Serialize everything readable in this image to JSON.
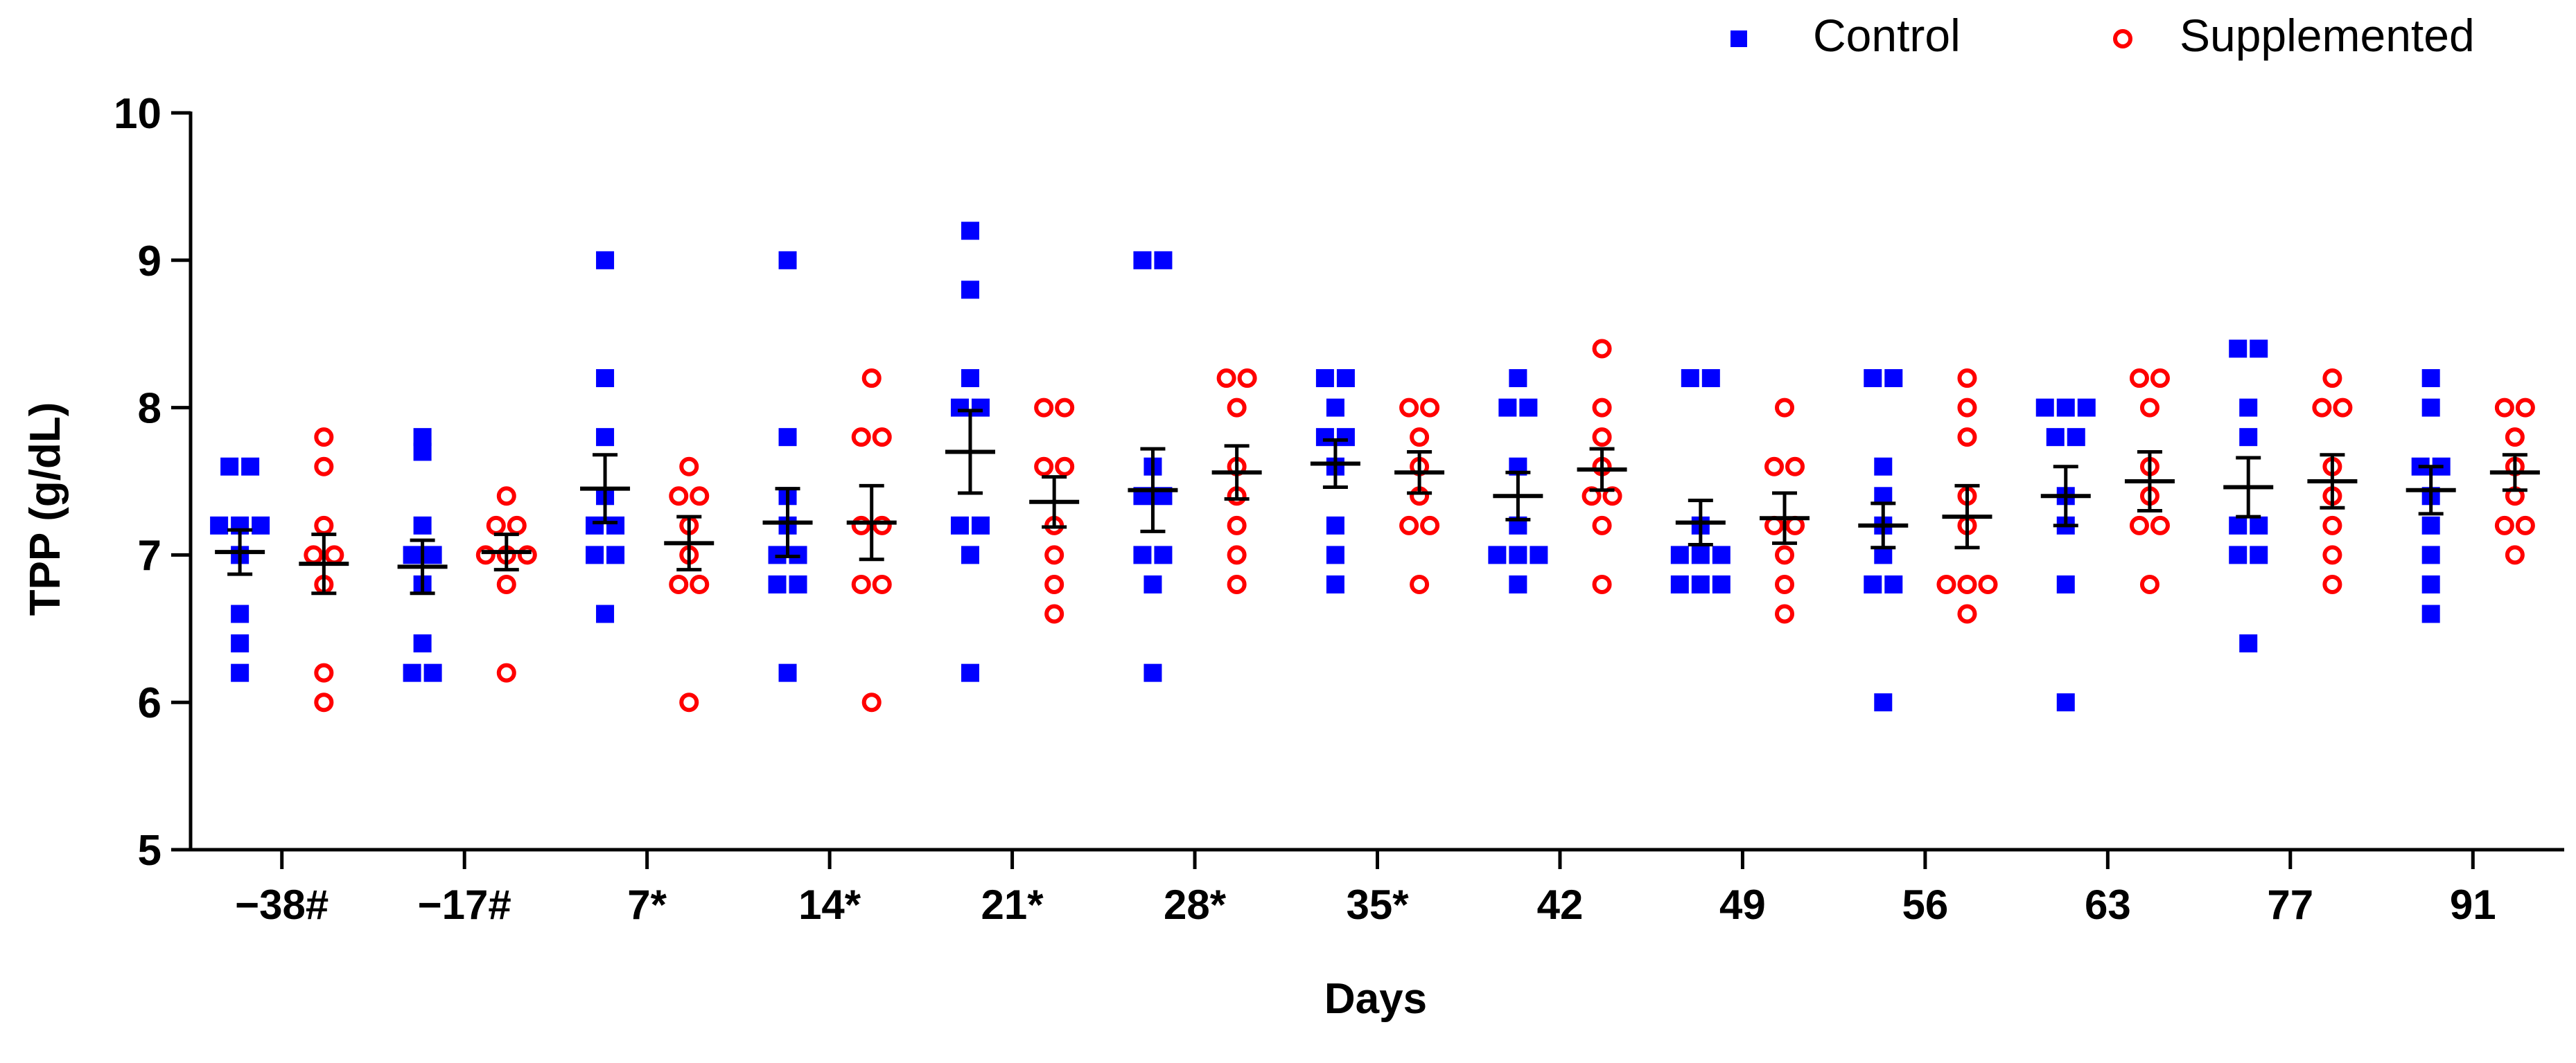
{
  "chart_data": {
    "type": "scatter",
    "title": "",
    "xlabel": "Days",
    "ylabel": "TPP (g/dL)",
    "ylim": [
      5,
      10
    ],
    "yticks": [
      "5",
      "6",
      "7",
      "8",
      "9",
      "10"
    ],
    "categories": [
      "−38#",
      "−17#",
      "7*",
      "14*",
      "21*",
      "28*",
      "35*",
      "42",
      "49",
      "56",
      "63",
      "77",
      "91"
    ],
    "legend_position": "top-right",
    "series": [
      {
        "name": "Control",
        "marker": "square",
        "color": "#0000ff",
        "points": [
          [
            7.6,
            7.6,
            7.2,
            7.2,
            7.2,
            7.0,
            6.6,
            6.4,
            6.2
          ],
          [
            7.8,
            7.7,
            7.2,
            7.0,
            7.0,
            6.8,
            6.4,
            6.2,
            6.2
          ],
          [
            9.0,
            8.2,
            7.8,
            7.4,
            7.2,
            7.2,
            7.0,
            7.0,
            6.6
          ],
          [
            9.0,
            7.8,
            7.4,
            7.2,
            7.0,
            7.0,
            6.8,
            6.8,
            6.2
          ],
          [
            9.2,
            8.8,
            8.2,
            8.0,
            8.0,
            7.2,
            7.2,
            7.0,
            6.2
          ],
          [
            9.0,
            9.0,
            7.6,
            7.4,
            7.4,
            7.0,
            7.0,
            6.8,
            6.2
          ],
          [
            8.2,
            8.2,
            8.0,
            7.8,
            7.8,
            7.6,
            7.2,
            7.0,
            6.8
          ],
          [
            8.2,
            8.0,
            8.0,
            7.6,
            7.2,
            7.0,
            7.0,
            7.0,
            6.8
          ],
          [
            8.2,
            8.2,
            7.2,
            7.0,
            7.0,
            7.0,
            6.8,
            6.8,
            6.8
          ],
          [
            8.2,
            8.2,
            7.6,
            7.4,
            7.2,
            7.0,
            6.8,
            6.8,
            6.0
          ],
          [
            8.0,
            8.0,
            8.0,
            7.8,
            7.8,
            7.4,
            7.2,
            6.8,
            6.0
          ],
          [
            8.4,
            8.4,
            8.0,
            7.8,
            7.2,
            7.2,
            7.0,
            7.0,
            6.4
          ],
          [
            8.2,
            8.0,
            7.6,
            7.6,
            7.4,
            7.2,
            7.0,
            6.8,
            6.6
          ]
        ],
        "mean": [
          7.02,
          6.92,
          7.45,
          7.22,
          7.7,
          7.44,
          7.62,
          7.4,
          7.22,
          7.2,
          7.4,
          7.46,
          7.44
        ],
        "sem": [
          0.15,
          0.18,
          0.23,
          0.23,
          0.28,
          0.28,
          0.16,
          0.16,
          0.15,
          0.15,
          0.2,
          0.2,
          0.16
        ]
      },
      {
        "name": "Supplemented",
        "marker": "circle-open",
        "color": "#ff0000",
        "points": [
          [
            7.8,
            7.6,
            7.2,
            7.0,
            7.0,
            6.8,
            6.2,
            6.0
          ],
          [
            7.4,
            7.2,
            7.2,
            7.0,
            7.0,
            7.0,
            6.8,
            6.2
          ],
          [
            7.6,
            7.4,
            7.4,
            7.2,
            7.0,
            6.8,
            6.8,
            6.0
          ],
          [
            8.2,
            7.8,
            7.8,
            7.2,
            7.2,
            6.8,
            6.8,
            6.0
          ],
          [
            8.0,
            8.0,
            7.6,
            7.6,
            7.2,
            7.0,
            6.8,
            6.6
          ],
          [
            8.2,
            8.2,
            8.0,
            7.6,
            7.4,
            7.2,
            7.0,
            6.8
          ],
          [
            8.0,
            8.0,
            7.8,
            7.6,
            7.4,
            7.2,
            7.2,
            6.8
          ],
          [
            8.4,
            8.0,
            7.8,
            7.6,
            7.4,
            7.4,
            7.2,
            6.8
          ],
          [
            8.0,
            7.6,
            7.6,
            7.2,
            7.2,
            7.0,
            6.8,
            6.6
          ],
          [
            8.2,
            8.0,
            7.8,
            7.4,
            7.2,
            6.8,
            6.8,
            6.8,
            6.6
          ],
          [
            8.2,
            8.2,
            8.0,
            7.6,
            7.4,
            7.2,
            7.2,
            6.8
          ],
          [
            8.2,
            8.0,
            8.0,
            7.6,
            7.4,
            7.2,
            7.0,
            6.8
          ],
          [
            8.0,
            8.0,
            7.8,
            7.6,
            7.4,
            7.2,
            7.2,
            7.0
          ]
        ],
        "mean": [
          6.94,
          7.02,
          7.08,
          7.22,
          7.36,
          7.56,
          7.56,
          7.58,
          7.25,
          7.26,
          7.5,
          7.5,
          7.56
        ],
        "sem": [
          0.2,
          0.12,
          0.18,
          0.25,
          0.17,
          0.18,
          0.14,
          0.14,
          0.17,
          0.21,
          0.2,
          0.18,
          0.12
        ]
      }
    ]
  }
}
